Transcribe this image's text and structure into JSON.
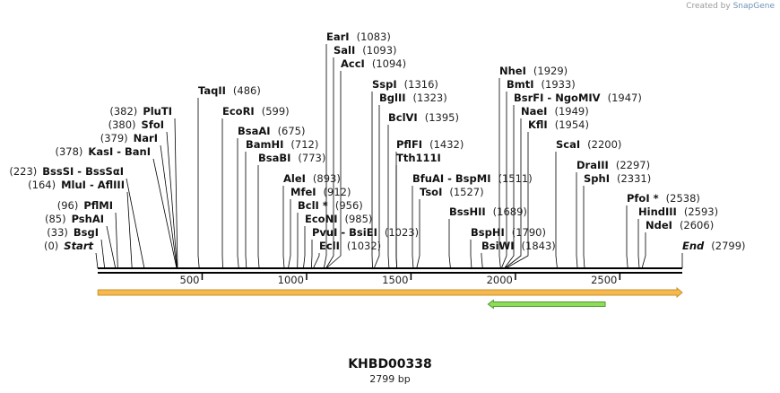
{
  "credit": {
    "prefix": "Created by",
    "brand": "SnapGene"
  },
  "plasmid": {
    "name": "KHBD00338",
    "length_label": "2799 bp",
    "length": 2799
  },
  "axis": {
    "ticks": [
      500,
      1000,
      1500,
      2000,
      2500
    ]
  },
  "features": [
    {
      "name": "orf-forward",
      "start": 1,
      "end": 2799,
      "direction": "forward",
      "fill": "#f7b84d",
      "stroke": "#c9922e"
    },
    {
      "name": "orf-reverse",
      "start": 1869,
      "end": 2430,
      "direction": "reverse",
      "fill": "#8fdc5a",
      "stroke": "#4f9a2a"
    }
  ],
  "sites": [
    {
      "group": "right",
      "label": "Start",
      "pos": "(0)",
      "bp": 0,
      "italic": true
    },
    {
      "group": "right",
      "label": "BsgI",
      "pos": "(33)",
      "bp": 33
    },
    {
      "group": "right",
      "label": "PshAI",
      "pos": "(85)",
      "bp": 85
    },
    {
      "group": "right",
      "label": "PflMI",
      "pos": "(96)",
      "bp": 96
    },
    {
      "group": "right",
      "label": "MluI",
      "label2": "AflIII",
      "pos": "(164)",
      "bp": 164
    },
    {
      "group": "right",
      "label": "BssSI",
      "label2": "BssSαI",
      "pos": "(223)",
      "bp": 223
    },
    {
      "group": "right",
      "label": "KasI",
      "label2": "BanI",
      "pos": "(378)",
      "bp": 378
    },
    {
      "group": "right",
      "label": "NarI",
      "pos": "(379)",
      "bp": 379
    },
    {
      "group": "right",
      "label": "SfoI",
      "pos": "(380)",
      "bp": 380
    },
    {
      "group": "right",
      "label": "PluTI",
      "pos": "(382)",
      "bp": 382
    },
    {
      "group": "left",
      "label": "TaqII",
      "pos": "(486)",
      "bp": 486
    },
    {
      "group": "left",
      "label": "EcoRI",
      "pos": "(599)",
      "bp": 599
    },
    {
      "group": "left",
      "label": "BsaAI",
      "pos": "(675)",
      "bp": 675
    },
    {
      "group": "left",
      "label": "BamHI",
      "pos": "(712)",
      "bp": 712
    },
    {
      "group": "left",
      "label": "BsaBI",
      "pos": "(773)",
      "bp": 773
    },
    {
      "group": "left",
      "label": "AleI",
      "pos": "(893)",
      "bp": 893
    },
    {
      "group": "left",
      "label": "MfeI",
      "pos": "(912)",
      "bp": 912
    },
    {
      "group": "left",
      "label": "BclI *",
      "pos": "(956)",
      "bp": 956
    },
    {
      "group": "left",
      "label": "EcoNI",
      "pos": "(985)",
      "bp": 985
    },
    {
      "group": "left",
      "label": "PvuI",
      "label2": "BsiEI",
      "pos": "(1023)",
      "bp": 1023
    },
    {
      "group": "left",
      "label": "EclI",
      "pos": "(1032)",
      "bp": 1032
    },
    {
      "group": "left",
      "label": "EarI",
      "pos": "(1083)",
      "bp": 1083
    },
    {
      "group": "left",
      "label": "SalI",
      "pos": "(1093)",
      "bp": 1093
    },
    {
      "group": "left",
      "label": "AccI",
      "pos": "(1094)",
      "bp": 1094
    },
    {
      "group": "left",
      "label": "SspI",
      "pos": "(1316)",
      "bp": 1316
    },
    {
      "group": "left",
      "label": "BglII",
      "pos": "(1323)",
      "bp": 1323
    },
    {
      "group": "left",
      "label": "BclVI",
      "pos": "(1395)",
      "bp": 1395
    },
    {
      "group": "left",
      "label": "PflFI",
      "pos": "(1432)",
      "bp": 1432
    },
    {
      "group": "left",
      "label": "Tth111I",
      "bp": 1432
    },
    {
      "group": "left",
      "label": "BfuAI",
      "label2": "BspMI",
      "pos": "(1511)",
      "bp": 1511
    },
    {
      "group": "left",
      "label": "TsoI",
      "pos": "(1527)",
      "bp": 1527
    },
    {
      "group": "left",
      "label": "BssHII",
      "pos": "(1689)",
      "bp": 1689
    },
    {
      "group": "left",
      "label": "BspHI",
      "pos": "(1790)",
      "bp": 1790
    },
    {
      "group": "left",
      "label": "BsiWI",
      "pos": "(1843)",
      "bp": 1843
    },
    {
      "group": "left",
      "label": "NheI",
      "pos": "(1929)",
      "bp": 1929
    },
    {
      "group": "left",
      "label": "BmtI",
      "pos": "(1933)",
      "bp": 1933
    },
    {
      "group": "left",
      "label": "BsrFI",
      "label2": "NgoMIV",
      "pos": "(1947)",
      "bp": 1947
    },
    {
      "group": "left",
      "label": "NaeI",
      "pos": "(1949)",
      "bp": 1949
    },
    {
      "group": "left",
      "label": "KflI",
      "pos": "(1954)",
      "bp": 1954
    },
    {
      "group": "left",
      "label": "ScaI",
      "pos": "(2200)",
      "bp": 2200
    },
    {
      "group": "left",
      "label": "DraIII",
      "pos": "(2297)",
      "bp": 2297
    },
    {
      "group": "left",
      "label": "SphI",
      "pos": "(2331)",
      "bp": 2331
    },
    {
      "group": "left",
      "label": "PfoI *",
      "pos": "(2538)",
      "bp": 2538
    },
    {
      "group": "left",
      "label": "HindIII",
      "pos": "(2593)",
      "bp": 2593
    },
    {
      "group": "left",
      "label": "NdeI",
      "pos": "(2606)",
      "bp": 2606
    },
    {
      "group": "left",
      "label": "End",
      "pos": "(2799)",
      "bp": 2799,
      "italic": true
    }
  ]
}
